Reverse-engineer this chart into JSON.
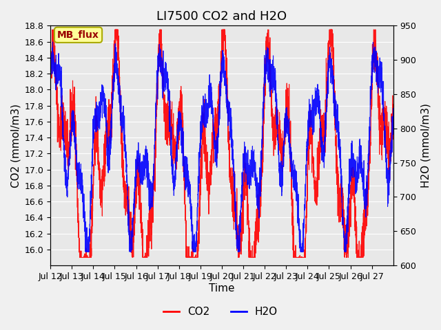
{
  "title": "LI7500 CO2 and H2O",
  "xlabel": "Time",
  "ylabel_left": "CO2 (mmol/m3)",
  "ylabel_right": "H2O (mmol/m3)",
  "co2_ylim": [
    15.8,
    18.8
  ],
  "h2o_ylim": [
    600,
    950
  ],
  "co2_yticks": [
    16.0,
    16.2,
    16.4,
    16.6,
    16.8,
    17.0,
    17.2,
    17.4,
    17.6,
    17.8,
    18.0,
    18.2,
    18.4,
    18.6,
    18.8
  ],
  "h2o_yticks": [
    600,
    650,
    700,
    750,
    800,
    850,
    900,
    950
  ],
  "xtick_labels": [
    "Jul 12",
    "Jul 13",
    "Jul 14",
    "Jul 15",
    "Jul 16",
    "Jul 17",
    "Jul 18",
    "Jul 19",
    "Jul 20",
    "Jul 21",
    "Jul 22",
    "Jul 23",
    "Jul 24",
    "Jul 25",
    "Jul 26",
    "Jul 27"
  ],
  "co2_color": "#ff0000",
  "h2o_color": "#0000ff",
  "fig_bg_color": "#f0f0f0",
  "plot_bg_color": "#e8e8e8",
  "grid_color": "#ffffff",
  "annotation_text": "MB_flux",
  "annotation_bg": "#ffff99",
  "annotation_border": "#aaaa00",
  "annotation_text_color": "#990000",
  "legend_co2": "CO2",
  "legend_h2o": "H2O",
  "title_fontsize": 13,
  "axis_label_fontsize": 11,
  "tick_fontsize": 9,
  "seed": 42,
  "n_points": 3600
}
